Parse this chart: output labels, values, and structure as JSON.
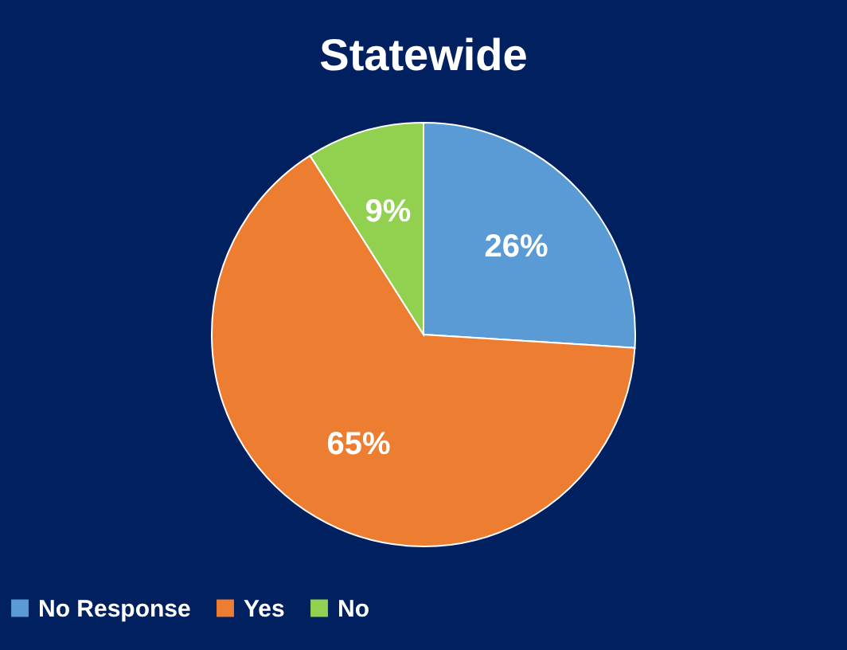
{
  "chart_data": {
    "type": "pie",
    "title": "Statewide",
    "categories": [
      "No Response",
      "Yes",
      "No"
    ],
    "values": [
      26,
      65,
      9
    ],
    "colors": [
      "#5b9bd5",
      "#ed7d31",
      "#92d050"
    ],
    "value_labels": [
      "26%",
      "65%",
      "9%"
    ],
    "legend": "bottom"
  }
}
